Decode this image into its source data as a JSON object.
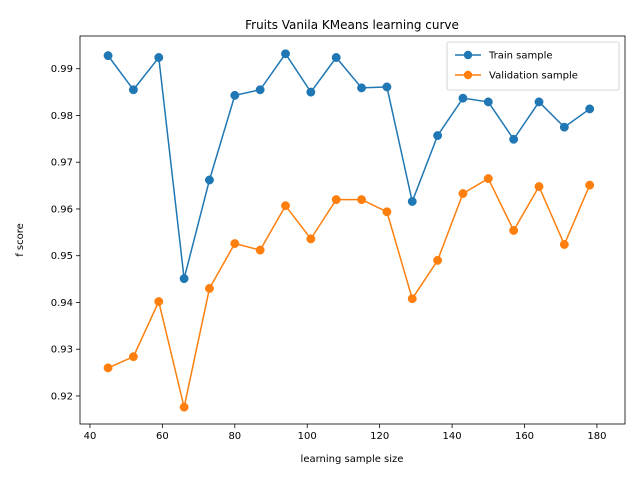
{
  "chart_data": {
    "type": "line",
    "title": "Fruits Vanila KMeans learning curve",
    "xlabel": "learning sample size",
    "ylabel": "f score",
    "xlim": [
      37.25,
      187.75
    ],
    "ylim": [
      0.914,
      0.997
    ],
    "xticks": [
      40,
      60,
      80,
      100,
      120,
      140,
      160,
      180
    ],
    "yticks": [
      0.92,
      0.93,
      0.94,
      0.95,
      0.96,
      0.97,
      0.98,
      0.99
    ],
    "xtick_labels": [
      "40",
      "60",
      "80",
      "100",
      "120",
      "140",
      "160",
      "180"
    ],
    "ytick_labels": [
      "0.92",
      "0.93",
      "0.94",
      "0.95",
      "0.96",
      "0.97",
      "0.98",
      "0.99"
    ],
    "grid": false,
    "legend_position": "top-right",
    "x": [
      45,
      52,
      59,
      66,
      73,
      80,
      87,
      94,
      101,
      108,
      115,
      122,
      129,
      136,
      143,
      150,
      157,
      164,
      171,
      178
    ],
    "series": [
      {
        "name": "Train sample",
        "color": "#1f77b4",
        "values": [
          0.9928,
          0.9855,
          0.9924,
          0.9451,
          0.9662,
          0.9843,
          0.9855,
          0.9932,
          0.985,
          0.9924,
          0.9859,
          0.9861,
          0.9616,
          0.9757,
          0.9837,
          0.9829,
          0.9749,
          0.9829,
          0.9775,
          0.9814
        ]
      },
      {
        "name": "Validation sample",
        "color": "#ff7f0e",
        "values": [
          0.926,
          0.9284,
          0.9402,
          0.9176,
          0.943,
          0.9526,
          0.9512,
          0.9607,
          0.9536,
          0.962,
          0.962,
          0.9594,
          0.9408,
          0.949,
          0.9633,
          0.9665,
          0.9554,
          0.9648,
          0.9524,
          0.9651
        ]
      }
    ]
  }
}
